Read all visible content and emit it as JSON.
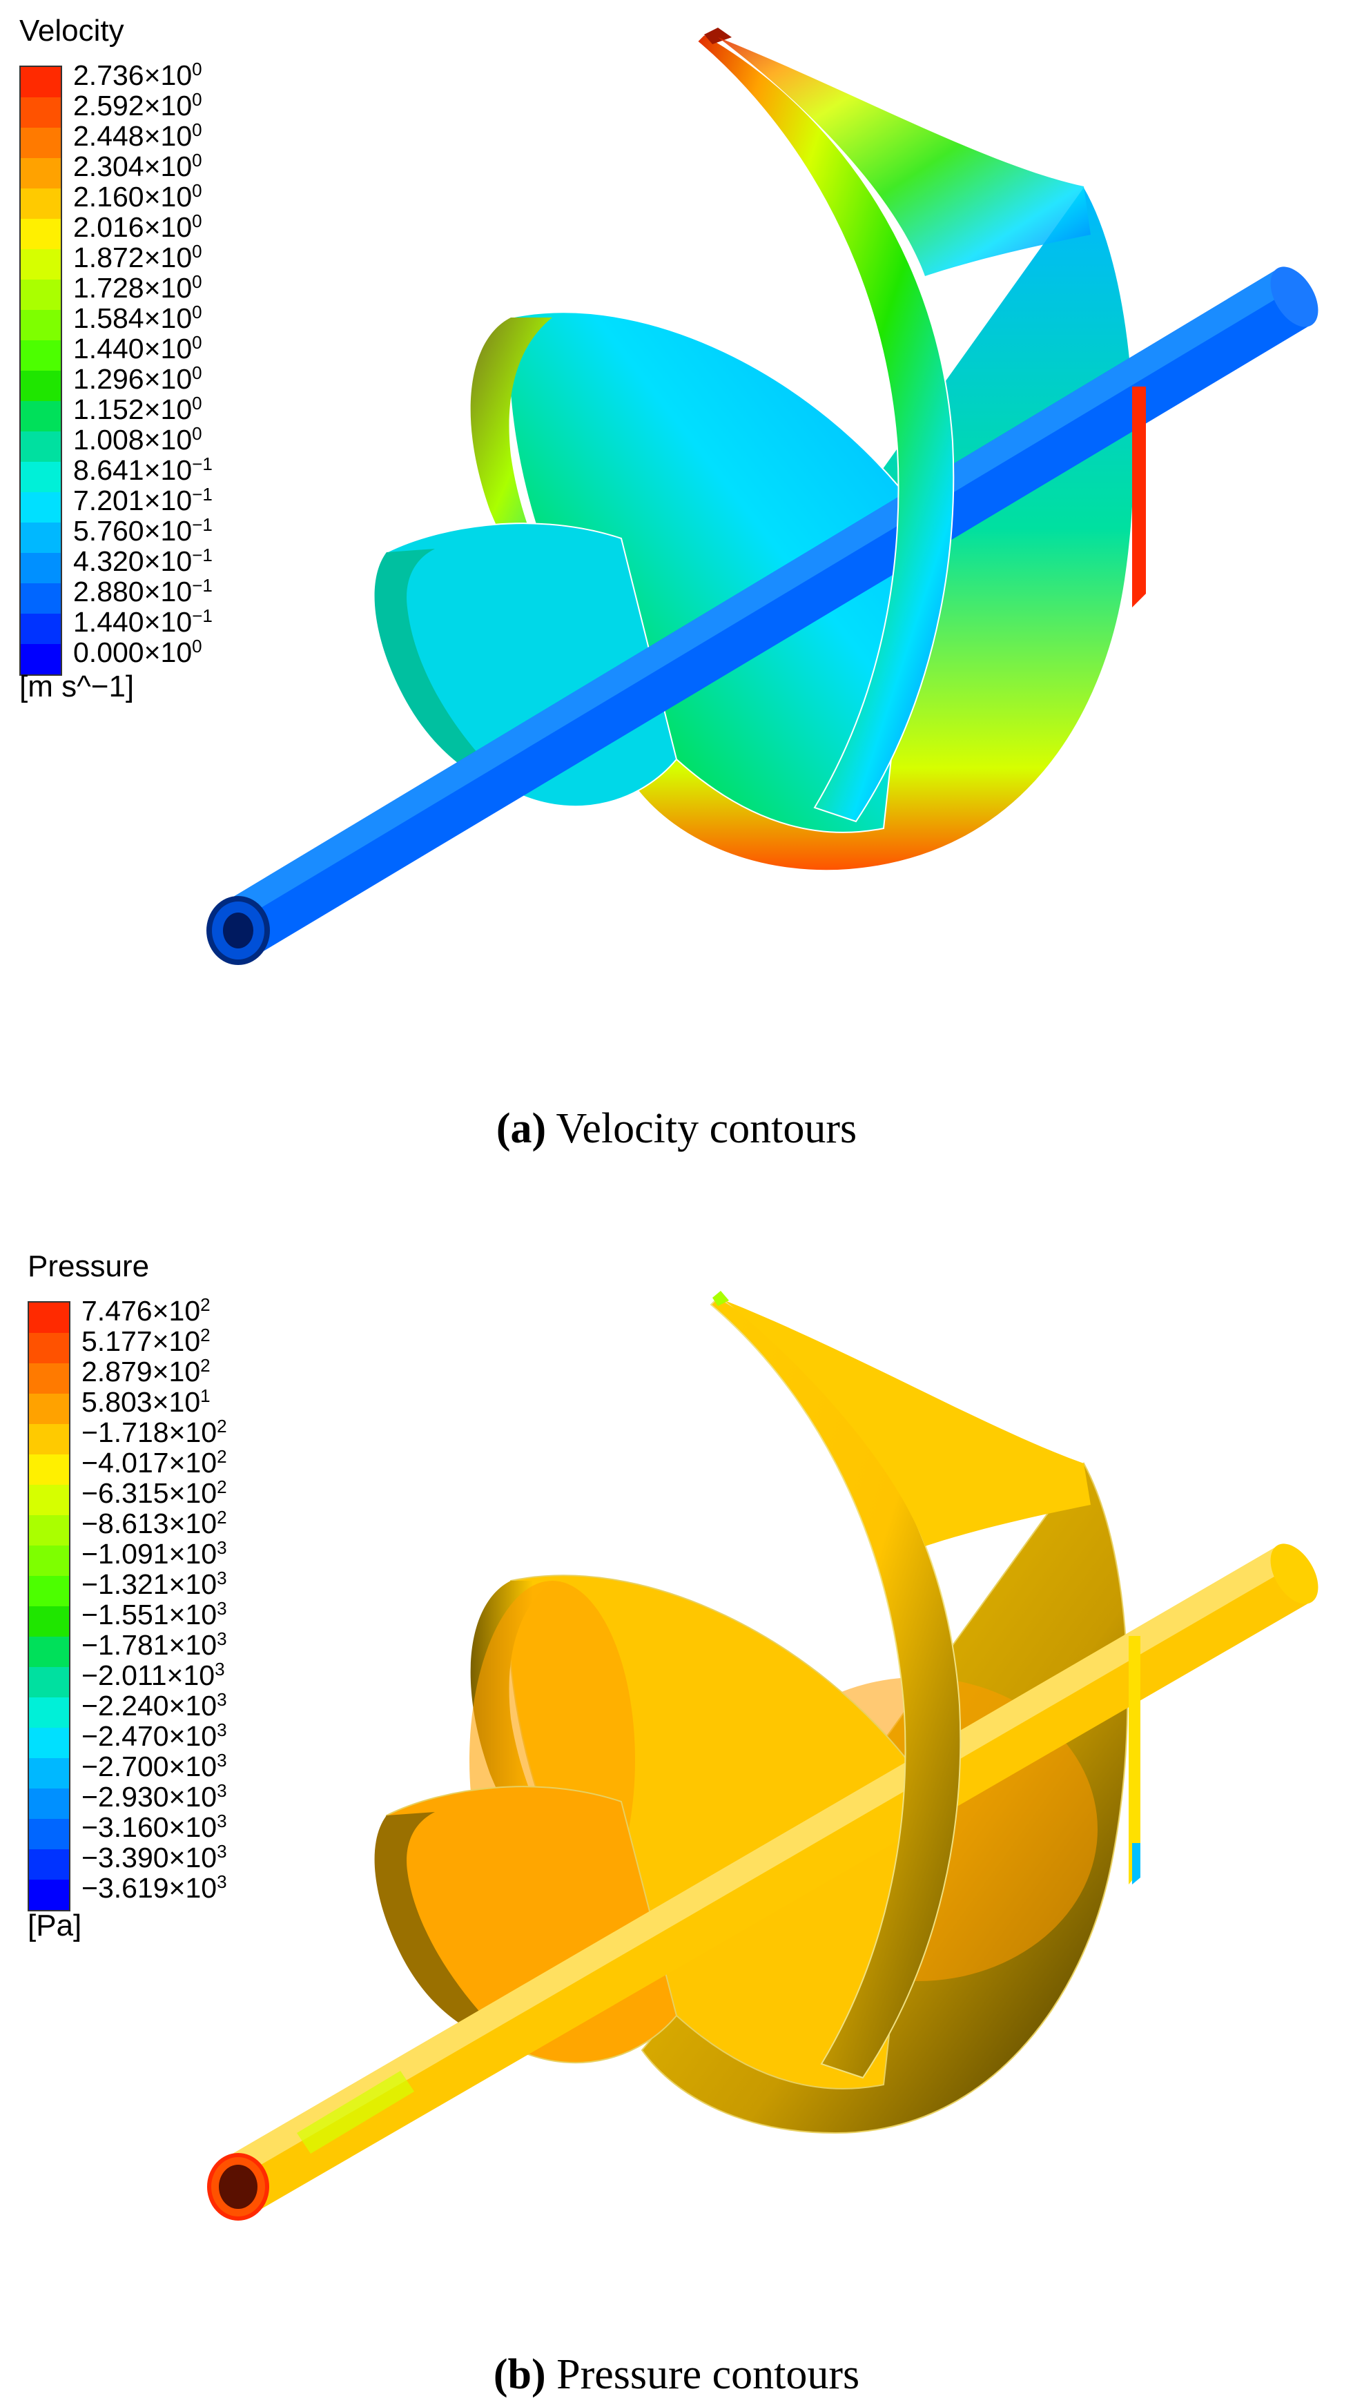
{
  "panels": [
    {
      "id": "a",
      "legend": {
        "title": "Velocity",
        "unit": "[m s^−1]",
        "labels": [
          "2.736×10^0",
          "2.592×10^0",
          "2.448×10^0",
          "2.304×10^0",
          "2.160×10^0",
          "2.016×10^0",
          "1.872×10^0",
          "1.728×10^0",
          "1.584×10^0",
          "1.440×10^0",
          "1.296×10^0",
          "1.152×10^0",
          "1.008×10^0",
          "8.641×10^−1",
          "7.201×10^−1",
          "5.760×10^−1",
          "4.320×10^−1",
          "2.880×10^−1",
          "1.440×10^−1",
          "0.000×10^0"
        ]
      },
      "caption": {
        "label": "(a)",
        "text": " Velocity contours"
      }
    },
    {
      "id": "b",
      "legend": {
        "title": "Pressure",
        "unit": "[Pa]",
        "labels": [
          "7.476×10^2",
          "5.177×10^2",
          "2.879×10^2",
          "5.803×10^1",
          "−1.718×10^2",
          "−4.017×10^2",
          "−6.315×10^2",
          "−8.613×10^2",
          "−1.091×10^3",
          "−1.321×10^3",
          "−1.551×10^3",
          "−1.781×10^3",
          "−2.011×10^3",
          "−2.240×10^3",
          "−2.470×10^3",
          "−2.700×10^3",
          "−2.930×10^3",
          "−3.160×10^3",
          "−3.390×10^3",
          "−3.619×10^3"
        ]
      },
      "caption": {
        "label": "(b)",
        "text": " Pressure contours"
      }
    }
  ],
  "colormap": [
    "#ff2a00",
    "#ff5200",
    "#ff7a00",
    "#ffa200",
    "#ffca00",
    "#fff000",
    "#d6ff00",
    "#aaff00",
    "#7eff00",
    "#4cff00",
    "#1fe600",
    "#00e05a",
    "#00e0a0",
    "#00f0d8",
    "#00e0ff",
    "#00b8ff",
    "#0090ff",
    "#0066ff",
    "#0033ff",
    "#0000ff"
  ]
}
